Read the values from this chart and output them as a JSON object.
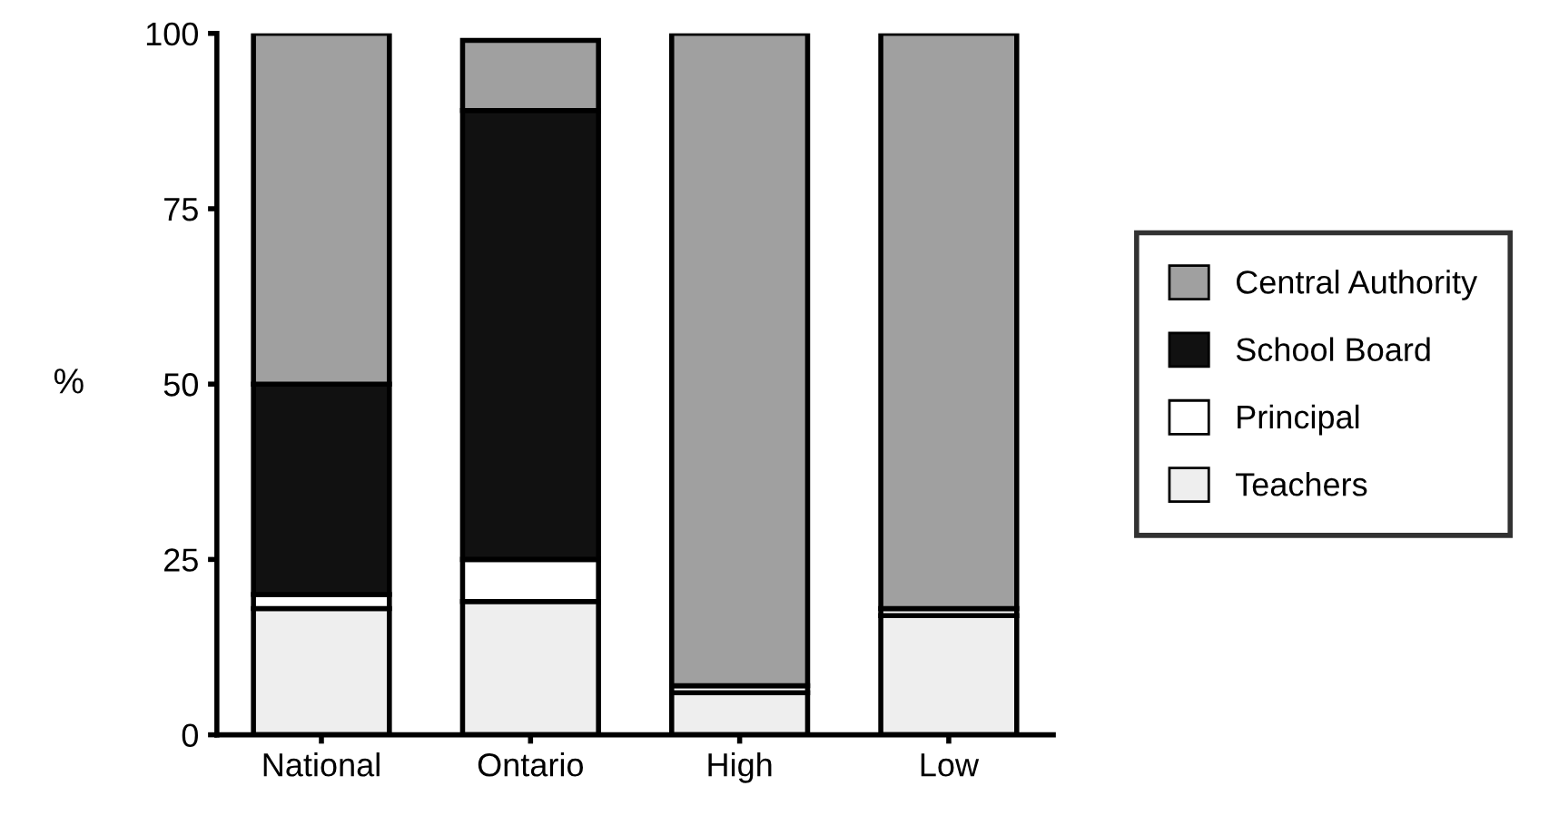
{
  "chart_data": {
    "type": "bar",
    "stacked": true,
    "ylabel": "%",
    "categories": [
      "National",
      "Ontario",
      "High",
      "Low"
    ],
    "series": [
      {
        "name": "Teachers",
        "color": "#eeeeee",
        "values": [
          18,
          19,
          6,
          17
        ]
      },
      {
        "name": "Principal",
        "color": "#ffffff",
        "values": [
          2,
          6,
          1,
          1
        ]
      },
      {
        "name": "School Board",
        "color": "#111111",
        "values": [
          30,
          64,
          0,
          0
        ]
      },
      {
        "name": "Central Authority",
        "color": "#a0a0a0",
        "values": [
          50,
          10,
          93,
          82
        ]
      }
    ],
    "ylim": [
      0,
      100
    ],
    "yticks": [
      0,
      25,
      50,
      75,
      100
    ],
    "grid": false,
    "legend": "right"
  }
}
